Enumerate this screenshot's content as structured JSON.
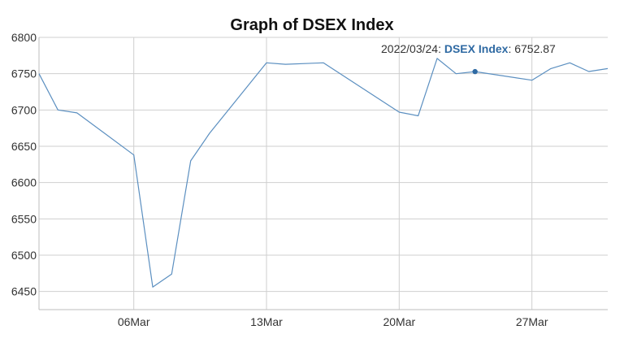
{
  "chart_data": {
    "type": "line",
    "title": "Graph of DSEX Index",
    "ylim": [
      6425,
      6800
    ],
    "y_ticks": [
      6450,
      6500,
      6550,
      6600,
      6650,
      6700,
      6750,
      6800
    ],
    "x_range": [
      "2022-03-01",
      "2022-03-31"
    ],
    "x_tick_labels": [
      {
        "date": "2022-03-06",
        "label": "06Mar"
      },
      {
        "date": "2022-03-13",
        "label": "13Mar"
      },
      {
        "date": "2022-03-20",
        "label": "20Mar"
      },
      {
        "date": "2022-03-27",
        "label": "27Mar"
      }
    ],
    "grid": true,
    "line_color": "#5b8fc0",
    "marker_color": "#2f6aa3",
    "series": [
      {
        "name": "DSEX Index",
        "points": [
          {
            "x": "2022-03-01",
            "y": 6750
          },
          {
            "x": "2022-03-02",
            "y": 6700
          },
          {
            "x": "2022-03-03",
            "y": 6696
          },
          {
            "x": "2022-03-06",
            "y": 6638
          },
          {
            "x": "2022-03-07",
            "y": 6456
          },
          {
            "x": "2022-03-08",
            "y": 6474
          },
          {
            "x": "2022-03-09",
            "y": 6630
          },
          {
            "x": "2022-03-10",
            "y": 6668
          },
          {
            "x": "2022-03-13",
            "y": 6765
          },
          {
            "x": "2022-03-14",
            "y": 6763
          },
          {
            "x": "2022-03-16",
            "y": 6765
          },
          {
            "x": "2022-03-20",
            "y": 6697
          },
          {
            "x": "2022-03-21",
            "y": 6692
          },
          {
            "x": "2022-03-22",
            "y": 6771
          },
          {
            "x": "2022-03-23",
            "y": 6750
          },
          {
            "x": "2022-03-24",
            "y": 6752.87
          },
          {
            "x": "2022-03-27",
            "y": 6741
          },
          {
            "x": "2022-03-28",
            "y": 6757
          },
          {
            "x": "2022-03-29",
            "y": 6765
          },
          {
            "x": "2022-03-30",
            "y": 6753
          },
          {
            "x": "2022-03-31",
            "y": 6757
          }
        ]
      }
    ],
    "tooltip": {
      "date": "2022/03/24",
      "series_name": "DSEX Index",
      "value": "6752.87",
      "highlight_x": "2022-03-24"
    }
  }
}
